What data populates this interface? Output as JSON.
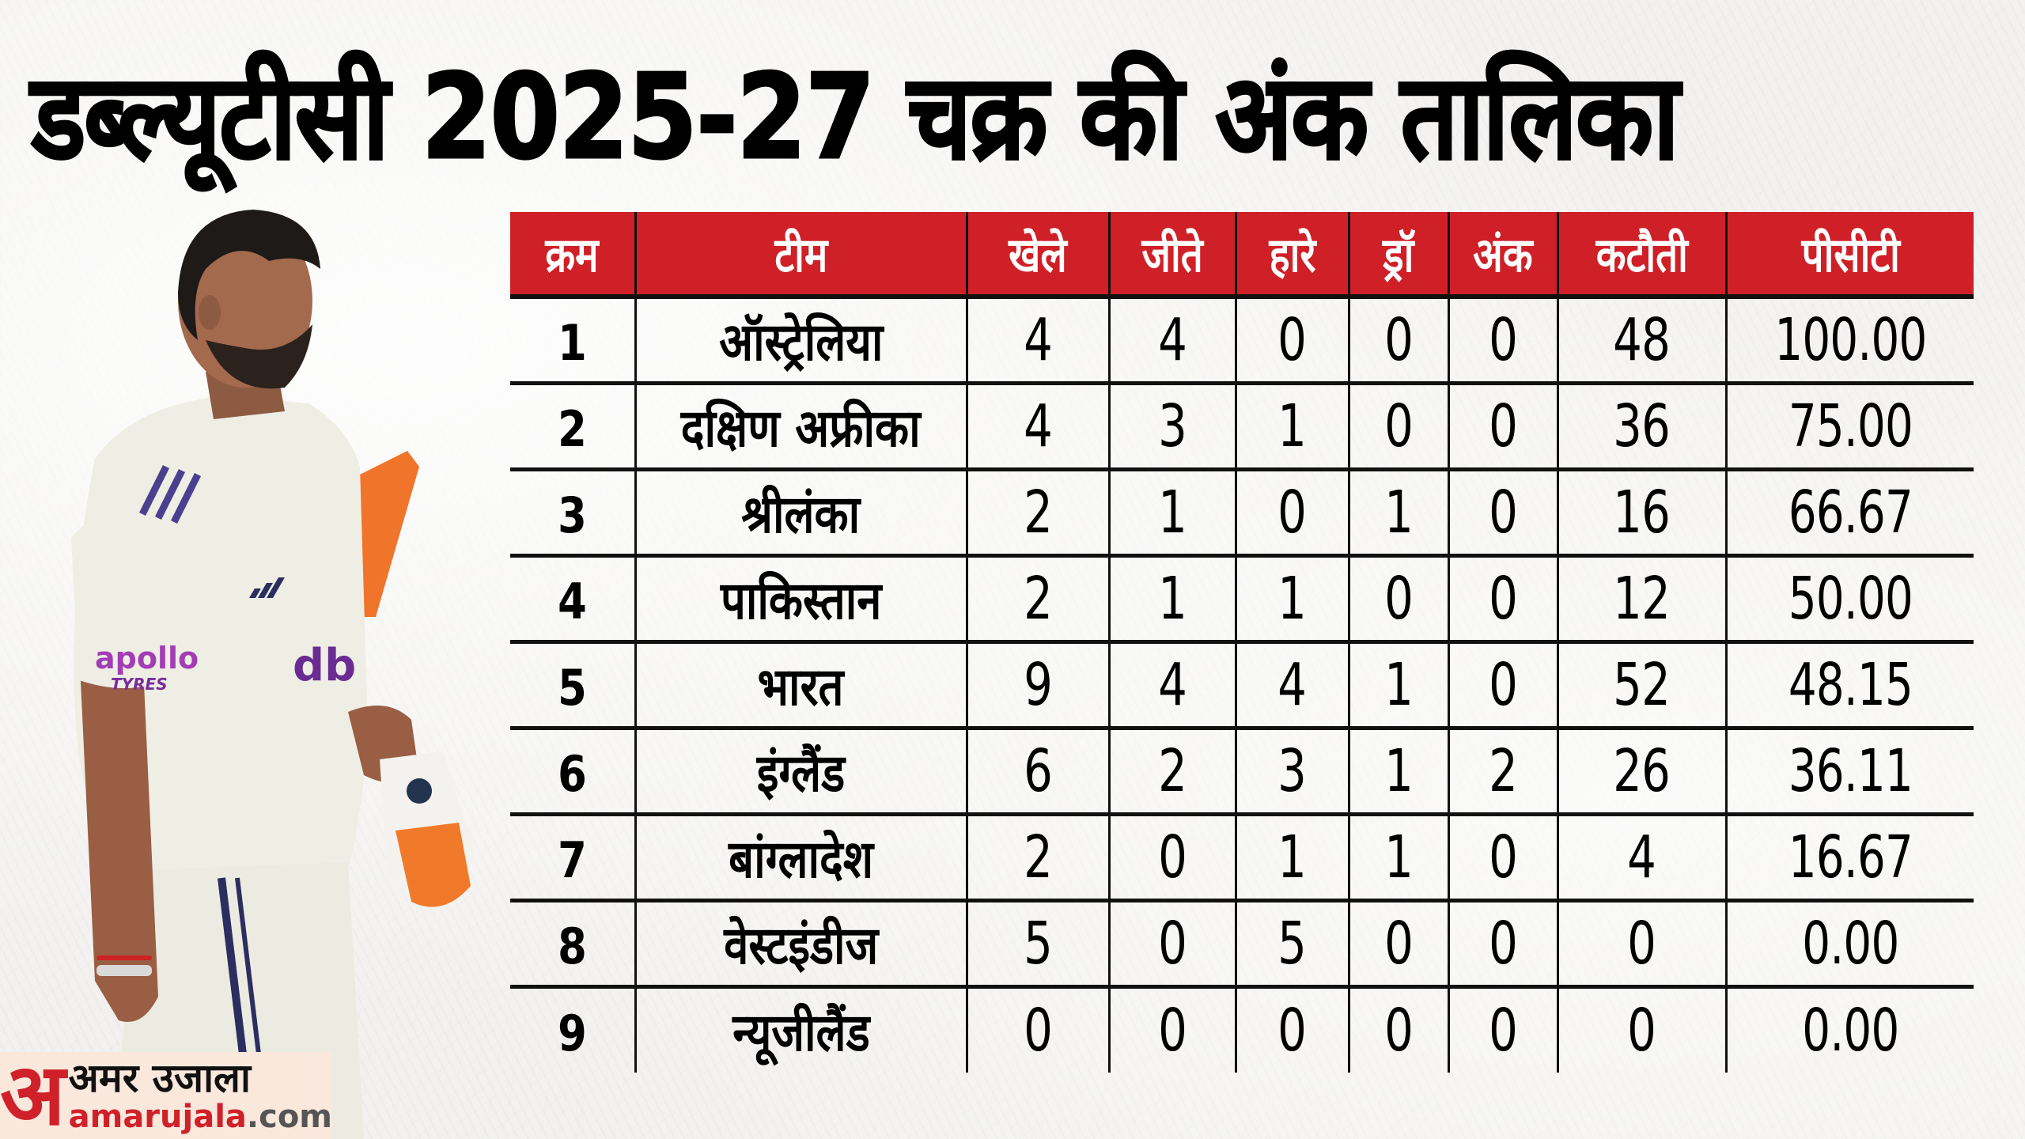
{
  "title": "डब्ल्यूटीसी 2025-27 चक्र की अंक तालिका",
  "colors": {
    "header_bg": "#d02027",
    "header_text": "#ffffff",
    "grid_lines": "#111111",
    "brand_red": "#d0202a",
    "brand_bg": "#fbe8dc"
  },
  "table": {
    "headers": {
      "rank": "क्रम",
      "team": "टीम",
      "played": "खेले",
      "won": "जीते",
      "lost": "हारे",
      "draw": "ड्रॉ",
      "points": "अंक",
      "deduction": "कटौती",
      "pct": "पीसीटी"
    },
    "rows": [
      {
        "rank": "1",
        "team": "ऑस्ट्रेलिया",
        "played": "4",
        "won": "4",
        "lost": "0",
        "draw": "0",
        "points": "0",
        "deduction": "48",
        "pct": "100.00"
      },
      {
        "rank": "2",
        "team": "दक्षिण अफ्रीका",
        "played": "4",
        "won": "3",
        "lost": "1",
        "draw": "0",
        "points": "0",
        "deduction": "36",
        "pct": "75.00"
      },
      {
        "rank": "3",
        "team": "श्रीलंका",
        "played": "2",
        "won": "1",
        "lost": "0",
        "draw": "1",
        "points": "0",
        "deduction": "16",
        "pct": "66.67"
      },
      {
        "rank": "4",
        "team": "पाकिस्तान",
        "played": "2",
        "won": "1",
        "lost": "1",
        "draw": "0",
        "points": "0",
        "deduction": "12",
        "pct": "50.00"
      },
      {
        "rank": "5",
        "team": "भारत",
        "played": "9",
        "won": "4",
        "lost": "4",
        "draw": "1",
        "points": "0",
        "deduction": "52",
        "pct": "48.15"
      },
      {
        "rank": "6",
        "team": "इंग्लैंड",
        "played": "6",
        "won": "2",
        "lost": "3",
        "draw": "1",
        "points": "2",
        "deduction": "26",
        "pct": "36.11"
      },
      {
        "rank": "7",
        "team": "बांग्लादेश",
        "played": "2",
        "won": "0",
        "lost": "1",
        "draw": "1",
        "points": "0",
        "deduction": "4",
        "pct": "16.67"
      },
      {
        "rank": "8",
        "team": "वेस्टइंडीज",
        "played": "5",
        "won": "0",
        "lost": "5",
        "draw": "0",
        "points": "0",
        "deduction": "0",
        "pct": "0.00"
      },
      {
        "rank": "9",
        "team": "न्यूजीलैंड",
        "played": "0",
        "won": "0",
        "lost": "0",
        "draw": "0",
        "points": "0",
        "deduction": "0",
        "pct": "0.00"
      }
    ]
  },
  "image": {
    "subject": "cricketer in white test kit holding bat and gloves",
    "sleeve_sponsor": "apollo TYRES"
  },
  "brand": {
    "mark": "अ",
    "name": "अमर उजाला",
    "url_main": "amarujala",
    "url_tld": ".com"
  }
}
